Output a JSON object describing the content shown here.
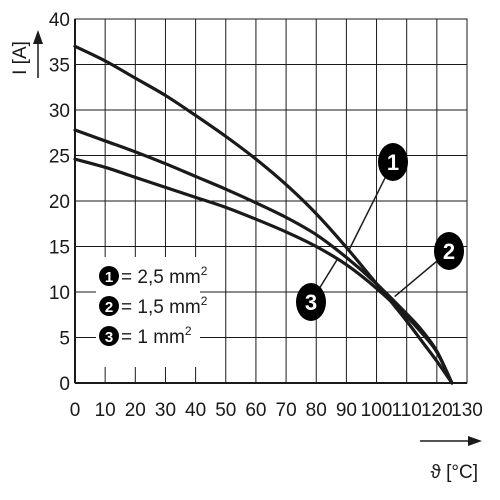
{
  "chart_data": {
    "type": "line",
    "xlabel": "ϑ [°C]",
    "ylabel": "I [A]",
    "xlim": [
      0,
      130
    ],
    "ylim": [
      0,
      40
    ],
    "x_ticks": [
      "0",
      "10",
      "20",
      "30",
      "40",
      "50",
      "60",
      "70",
      "80",
      "90",
      "100",
      "110",
      "120",
      "130"
    ],
    "y_ticks": [
      "0",
      "5",
      "10",
      "15",
      "20",
      "25",
      "30",
      "35",
      "40"
    ],
    "grid": true,
    "legend_position": "bottom-left",
    "series": [
      {
        "marker": "1",
        "name": "= 2,5 mm",
        "superscript": "2",
        "x": [
          0,
          10,
          20,
          30,
          40,
          50,
          60,
          70,
          80,
          90,
          100,
          110,
          115,
          120,
          125
        ],
        "y": [
          37,
          35.4,
          33.5,
          31.6,
          29.4,
          27.1,
          24.6,
          21.8,
          18.6,
          14.9,
          10.9,
          6.8,
          4.6,
          2.4,
          0
        ]
      },
      {
        "marker": "2",
        "name": "= 1,5 mm",
        "superscript": "2",
        "x": [
          0,
          10,
          20,
          30,
          40,
          50,
          60,
          70,
          80,
          90,
          100,
          110,
          115,
          120,
          125
        ],
        "y": [
          27.8,
          26.6,
          25.4,
          24.1,
          22.7,
          21.3,
          19.8,
          18.2,
          16.3,
          13.8,
          10.9,
          7.6,
          5.8,
          3.5,
          0
        ]
      },
      {
        "marker": "3",
        "name": "= 1 mm",
        "superscript": "2",
        "x": [
          0,
          10,
          20,
          30,
          40,
          50,
          60,
          70,
          80,
          90,
          100,
          110,
          115,
          120,
          125
        ],
        "y": [
          24.6,
          23.7,
          22.6,
          21.5,
          20.4,
          19.3,
          18.0,
          16.6,
          15.0,
          13.0,
          10.4,
          7.3,
          5.5,
          3.4,
          0
        ]
      }
    ],
    "callouts": [
      {
        "label": "1",
        "target": [
          91,
          14.7
        ]
      },
      {
        "label": "2",
        "target": [
          106,
          9.5
        ]
      },
      {
        "label": "3",
        "target": [
          87,
          13.6
        ]
      }
    ],
    "colors": {
      "line": "#1a1a1a",
      "grid": "#1a1a1a",
      "badge": "#000000"
    }
  }
}
